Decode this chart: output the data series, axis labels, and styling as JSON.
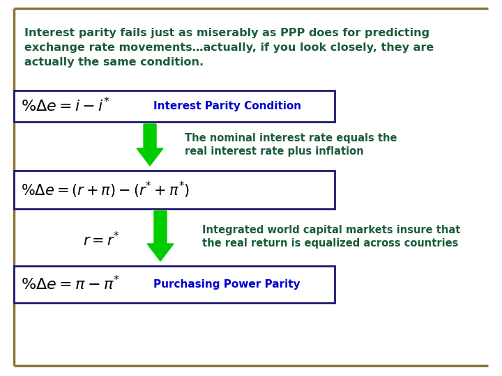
{
  "background_color": "#ffffff",
  "border_color": "#8B7536",
  "title_text": "Interest parity fails just as miserably as PPP does for predicting\nexchange rate movements…actually, if you look closely, they are\nactually the same condition.",
  "title_color": "#1a5c38",
  "title_fontsize": 11.5,
  "eq1": "$\\%\\Delta e = i - i^{*}$",
  "eq1_label": "Interest Parity Condition",
  "eq1_label_color": "#0000cc",
  "eq2": "$\\%\\Delta e = (r+\\pi)-(r^{*}+\\pi^{*})$",
  "eq2_note": "The nominal interest rate equals the\nreal interest rate plus inflation",
  "eq2_note_color": "#1a5c38",
  "eq3_side": "$r = r^{*}$",
  "eq3_note": "Integrated world capital markets insure that\nthe real return is equalized across countries",
  "eq3_note_color": "#1a5c38",
  "eq4": "$\\%\\Delta e = \\pi - \\pi^{*}$",
  "eq4_label": "Purchasing Power Parity",
  "eq4_label_color": "#0000cc",
  "box_edge_color": "#1a1a6e",
  "arrow_color": "#00cc00",
  "formula_color": "#000000",
  "note_fontsize": 10.5,
  "eq_fontsize": 16,
  "label_fontsize": 11
}
